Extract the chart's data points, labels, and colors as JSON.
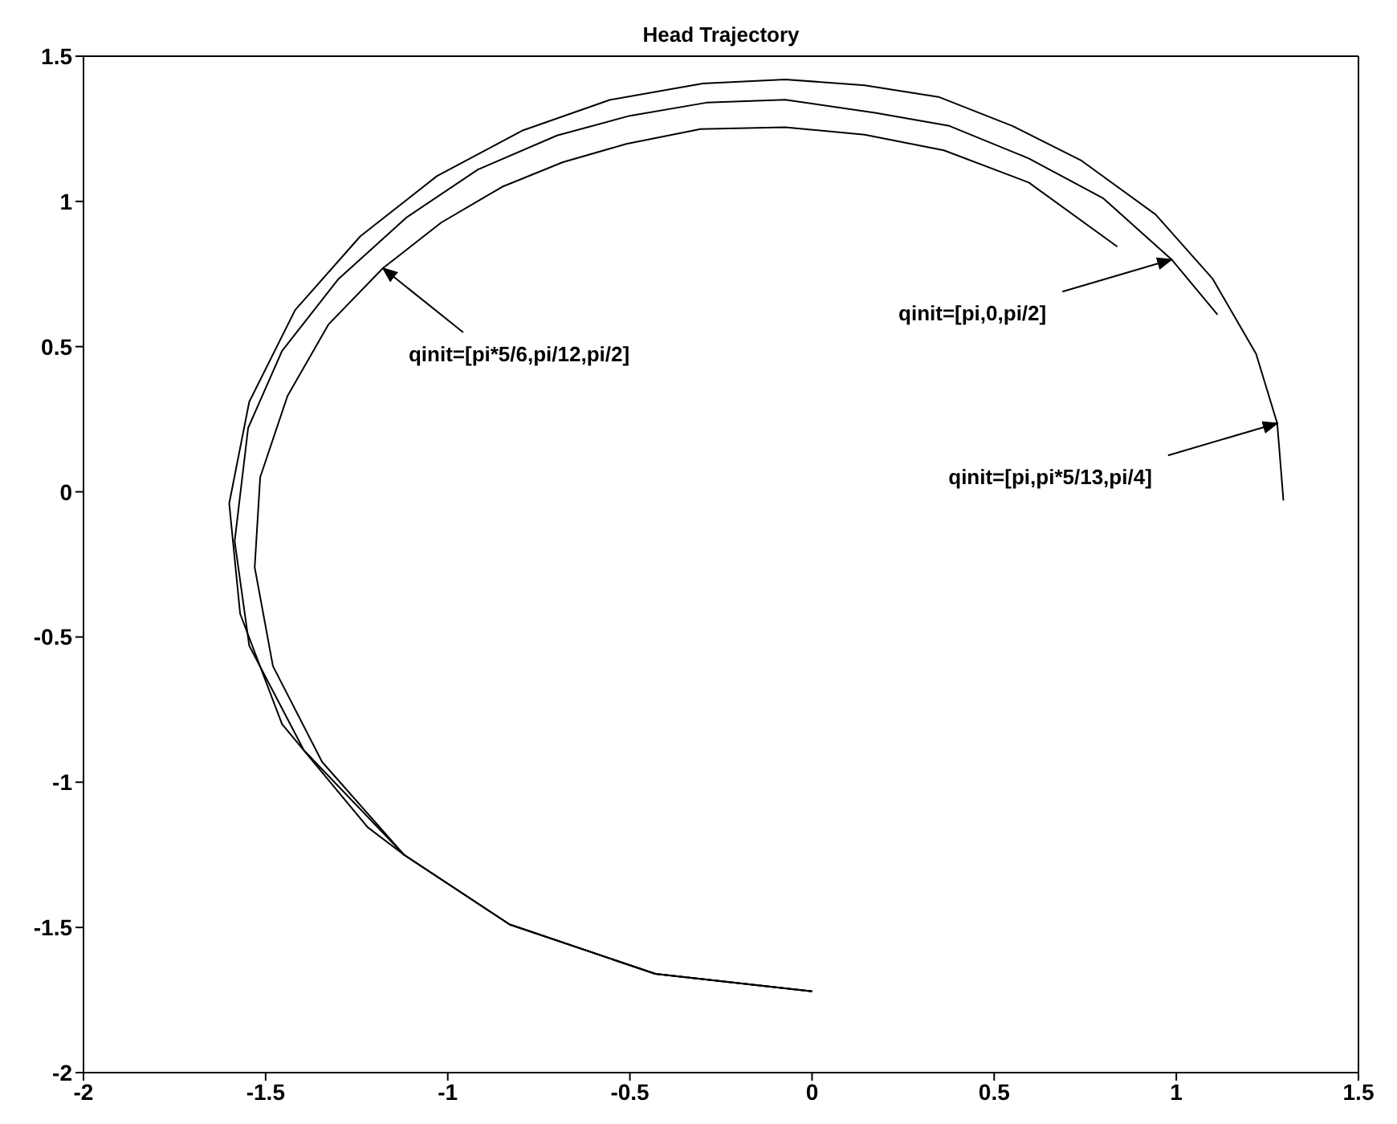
{
  "chart_data": {
    "type": "line",
    "title": "Head Trajectory",
    "xlim": [
      -2,
      1.5
    ],
    "ylim": [
      -2,
      1.5
    ],
    "xticks": [
      -2,
      -1.5,
      -1,
      -0.5,
      0,
      0.5,
      1,
      1.5
    ],
    "yticks": [
      -2,
      -1.5,
      -1,
      -0.5,
      0,
      0.5,
      1,
      1.5
    ],
    "marker": "none",
    "line_style": "solid",
    "series": [
      {
        "color": "#000000",
        "x": [
          0,
          -0.43,
          -0.83,
          -1.12,
          -1.22,
          -1.455,
          -1.57,
          -1.6,
          -1.545,
          -1.419,
          -1.24,
          -1.03,
          -0.793,
          -0.554,
          -0.3,
          -0.074,
          0.144,
          0.347,
          0.55,
          0.74,
          0.943,
          1.1,
          1.219,
          1.277,
          1.294
        ],
        "values": [
          -1.72,
          -1.66,
          -1.49,
          -1.25,
          -1.155,
          -0.8,
          -0.42,
          -0.04,
          0.31,
          0.626,
          0.88,
          1.087,
          1.245,
          1.35,
          1.406,
          1.42,
          1.4,
          1.36,
          1.26,
          1.14,
          0.955,
          0.733,
          0.475,
          0.236,
          -0.03
        ]
      },
      {
        "color": "#000000",
        "x": [
          0,
          -0.43,
          -0.83,
          -1.12,
          -1.395,
          -1.545,
          -1.585,
          -1.548,
          -1.455,
          -1.3,
          -1.113,
          -0.917,
          -0.7,
          -0.5,
          -0.29,
          -0.074,
          0.173,
          0.377,
          0.595,
          0.8,
          0.987,
          1.113
        ],
        "values": [
          -1.72,
          -1.66,
          -1.49,
          -1.25,
          -0.89,
          -0.53,
          -0.17,
          0.22,
          0.485,
          0.733,
          0.945,
          1.11,
          1.227,
          1.295,
          1.34,
          1.35,
          1.305,
          1.26,
          1.148,
          1.01,
          0.8,
          0.61
        ]
      },
      {
        "color": "#000000",
        "x": [
          0,
          -0.43,
          -0.83,
          -1.12,
          -1.345,
          -1.48,
          -1.53,
          -1.515,
          -1.44,
          -1.327,
          -1.178,
          -1.018,
          -0.851,
          -0.684,
          -0.51,
          -0.306,
          -0.074,
          0.144,
          0.362,
          0.595,
          0.838
        ],
        "values": [
          -1.72,
          -1.66,
          -1.49,
          -1.25,
          -0.93,
          -0.6,
          -0.26,
          0.05,
          0.33,
          0.577,
          0.77,
          0.927,
          1.05,
          1.135,
          1.198,
          1.249,
          1.255,
          1.23,
          1.176,
          1.065,
          0.844
        ]
      }
    ],
    "annotations": [
      {
        "text": "qinit=[pi*5/6,pi/12,pi/2]",
        "x": -1.178,
        "y": 0.77
      },
      {
        "text": "qinit=[pi,0,pi/2]",
        "x": 0.987,
        "y": 0.8
      },
      {
        "text": "qinit=[pi,pi*5/13,pi/4]",
        "x": 1.277,
        "y": 0.236
      }
    ]
  }
}
